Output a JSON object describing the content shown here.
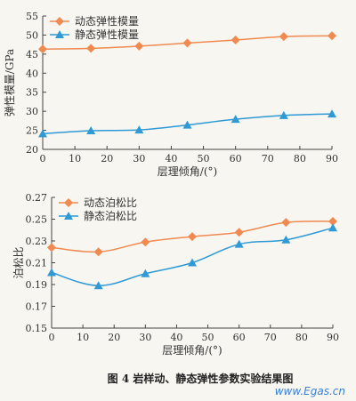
{
  "chart_data": [
    {
      "type": "line",
      "ylabel": "弹性模量/GPa",
      "xlabel": "层理倾角/(°)",
      "xlim": [
        0,
        90
      ],
      "ylim": [
        20,
        55
      ],
      "xticks": [
        0,
        10,
        20,
        30,
        40,
        50,
        60,
        70,
        80,
        90
      ],
      "yticks": [
        20,
        25,
        30,
        35,
        40,
        45,
        50,
        55
      ],
      "x": [
        0,
        15,
        30,
        45,
        60,
        75,
        90
      ],
      "legend_position": "top-left",
      "grid": false,
      "series": [
        {
          "name": "动态弹性模量",
          "color": "#f08a50",
          "marker": "diamond",
          "values": [
            46.3,
            46.5,
            47.1,
            47.9,
            48.7,
            49.6,
            49.8
          ]
        },
        {
          "name": "静态弹性模量",
          "color": "#2f9ad6",
          "marker": "triangle",
          "values": [
            24.1,
            24.9,
            25.1,
            26.4,
            27.9,
            28.9,
            29.3
          ]
        }
      ]
    },
    {
      "type": "line",
      "ylabel": "泊松比",
      "xlabel": "层理倾角/(°)",
      "xlim": [
        0,
        90
      ],
      "ylim": [
        0.15,
        0.27
      ],
      "xticks": [
        0,
        10,
        20,
        30,
        40,
        50,
        60,
        70,
        80,
        90
      ],
      "yticks": [
        0.15,
        0.17,
        0.19,
        0.21,
        0.23,
        0.25,
        0.27
      ],
      "x": [
        0,
        15,
        30,
        45,
        60,
        75,
        90
      ],
      "legend_position": "top-left",
      "grid": false,
      "series": [
        {
          "name": "动态泊松比",
          "color": "#f08a50",
          "marker": "diamond",
          "values": [
            0.224,
            0.22,
            0.229,
            0.234,
            0.238,
            0.247,
            0.248
          ]
        },
        {
          "name": "静态泊松比",
          "color": "#2f9ad6",
          "marker": "triangle",
          "values": [
            0.201,
            0.189,
            0.2,
            0.21,
            0.227,
            0.231,
            0.242
          ]
        }
      ]
    }
  ],
  "caption": "图 4  岩样动、静态弹性参数实验结果图",
  "watermark": "www.Egas.cn"
}
